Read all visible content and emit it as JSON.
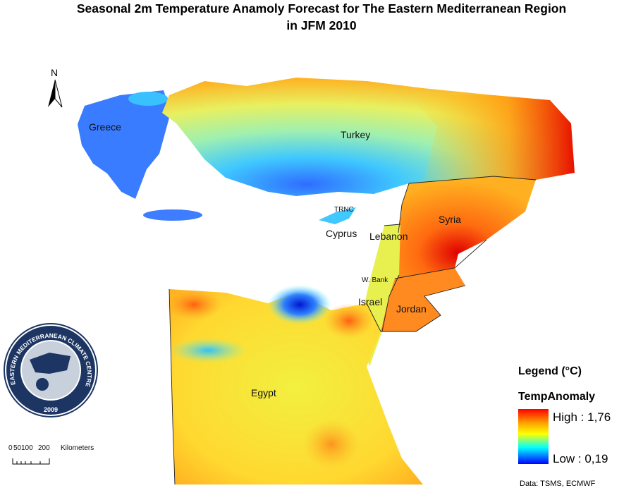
{
  "title": {
    "line1": "Seasonal 2m Temperature Anamoly Forecast for  The Eastern Mediterranean Region",
    "line2": "in JFM 2010"
  },
  "north": "N",
  "map_labels": [
    "Greece",
    "Turkey",
    "TRNC",
    "Cyprus",
    "Syria",
    "Lebanon",
    "W. Bank",
    "Israel",
    "Jordan",
    "Egypt"
  ],
  "logo": {
    "text": "EASTERN MEDITERRANEAN CLIMATE CENTRE",
    "year": "2009"
  },
  "scale_bar": {
    "ticks": [
      "0",
      "50",
      "100",
      "200"
    ],
    "unit": "Kilometers"
  },
  "legend": {
    "title": "Legend (°C)",
    "layer": "TempAnomaly",
    "high": "High : 1,76",
    "low": "Low : 0,19"
  },
  "source": "Data:  TSMS, ECMWF"
}
